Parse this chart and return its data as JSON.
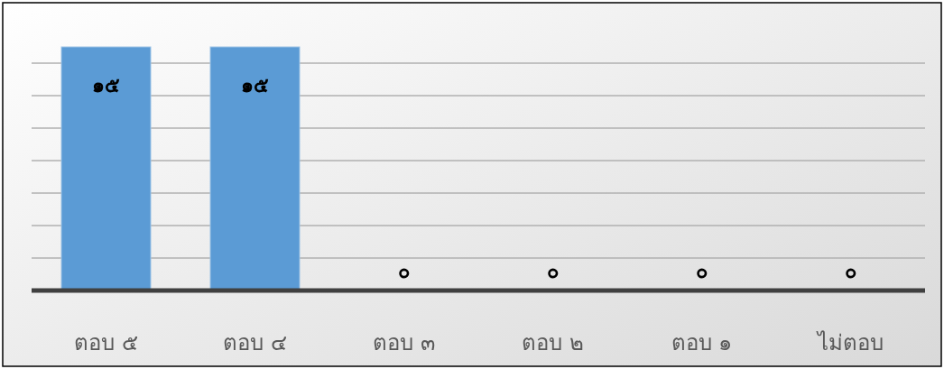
{
  "chart_data": {
    "type": "bar",
    "categories": [
      "ตอบ ๕",
      "ตอบ ๔",
      "ตอบ ๓",
      "ตอบ ๒",
      "ตอบ ๑",
      "ไม่ตอบ"
    ],
    "values": [
      15,
      15,
      0,
      0,
      0,
      0
    ],
    "value_labels": [
      "๑๕",
      "๑๕",
      "๐",
      "๐",
      "๐",
      "๐"
    ],
    "color": "#5b9bd5",
    "yticks": [
      {
        "value": 0,
        "label": null
      },
      {
        "value": 2,
        "label": null
      },
      {
        "value": 4,
        "label": null
      },
      {
        "value": 6,
        "label": null
      },
      {
        "value": 8,
        "label": null
      },
      {
        "value": 10,
        "label": null
      },
      {
        "value": 12,
        "label": null
      },
      {
        "value": 14,
        "label": null
      }
    ],
    "grid": "y",
    "tick_labels": "x"
  }
}
